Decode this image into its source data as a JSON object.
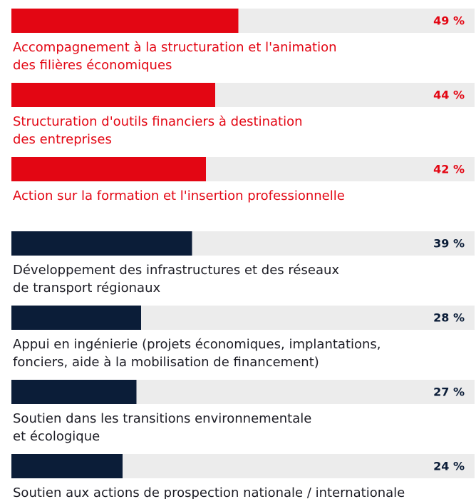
{
  "chart_data": {
    "type": "bar",
    "orientation": "horizontal",
    "categories": [
      [
        "Accompagnement à la structuration et l'animation",
        "des filières économiques"
      ],
      [
        "Structuration d'outils financiers à destination",
        "des entreprises"
      ],
      [
        "Action sur la formation et l'insertion professionnelle"
      ],
      [
        "Développement des infrastructures et des réseaux",
        "de transport régionaux"
      ],
      [
        "Appui en ingénierie (projets économiques, implantations,",
        "fonciers, aide à la mobilisation de financement)"
      ],
      [
        "Soutien dans les transitions environnementale",
        "et écologique"
      ],
      [
        "Soutien aux actions de prospection nationale / internationale"
      ]
    ],
    "values": [
      49,
      44,
      42,
      39,
      28,
      27,
      24
    ],
    "value_labels": [
      "49 %",
      "44 %",
      "42 %",
      "39 %",
      "28 %",
      "27 %",
      "24 %"
    ],
    "colors": [
      "#e30613",
      "#e30613",
      "#e30613",
      "#0b1d38",
      "#0b1d38",
      "#0b1d38",
      "#0b1d38"
    ],
    "xlim": [
      0,
      100
    ]
  }
}
